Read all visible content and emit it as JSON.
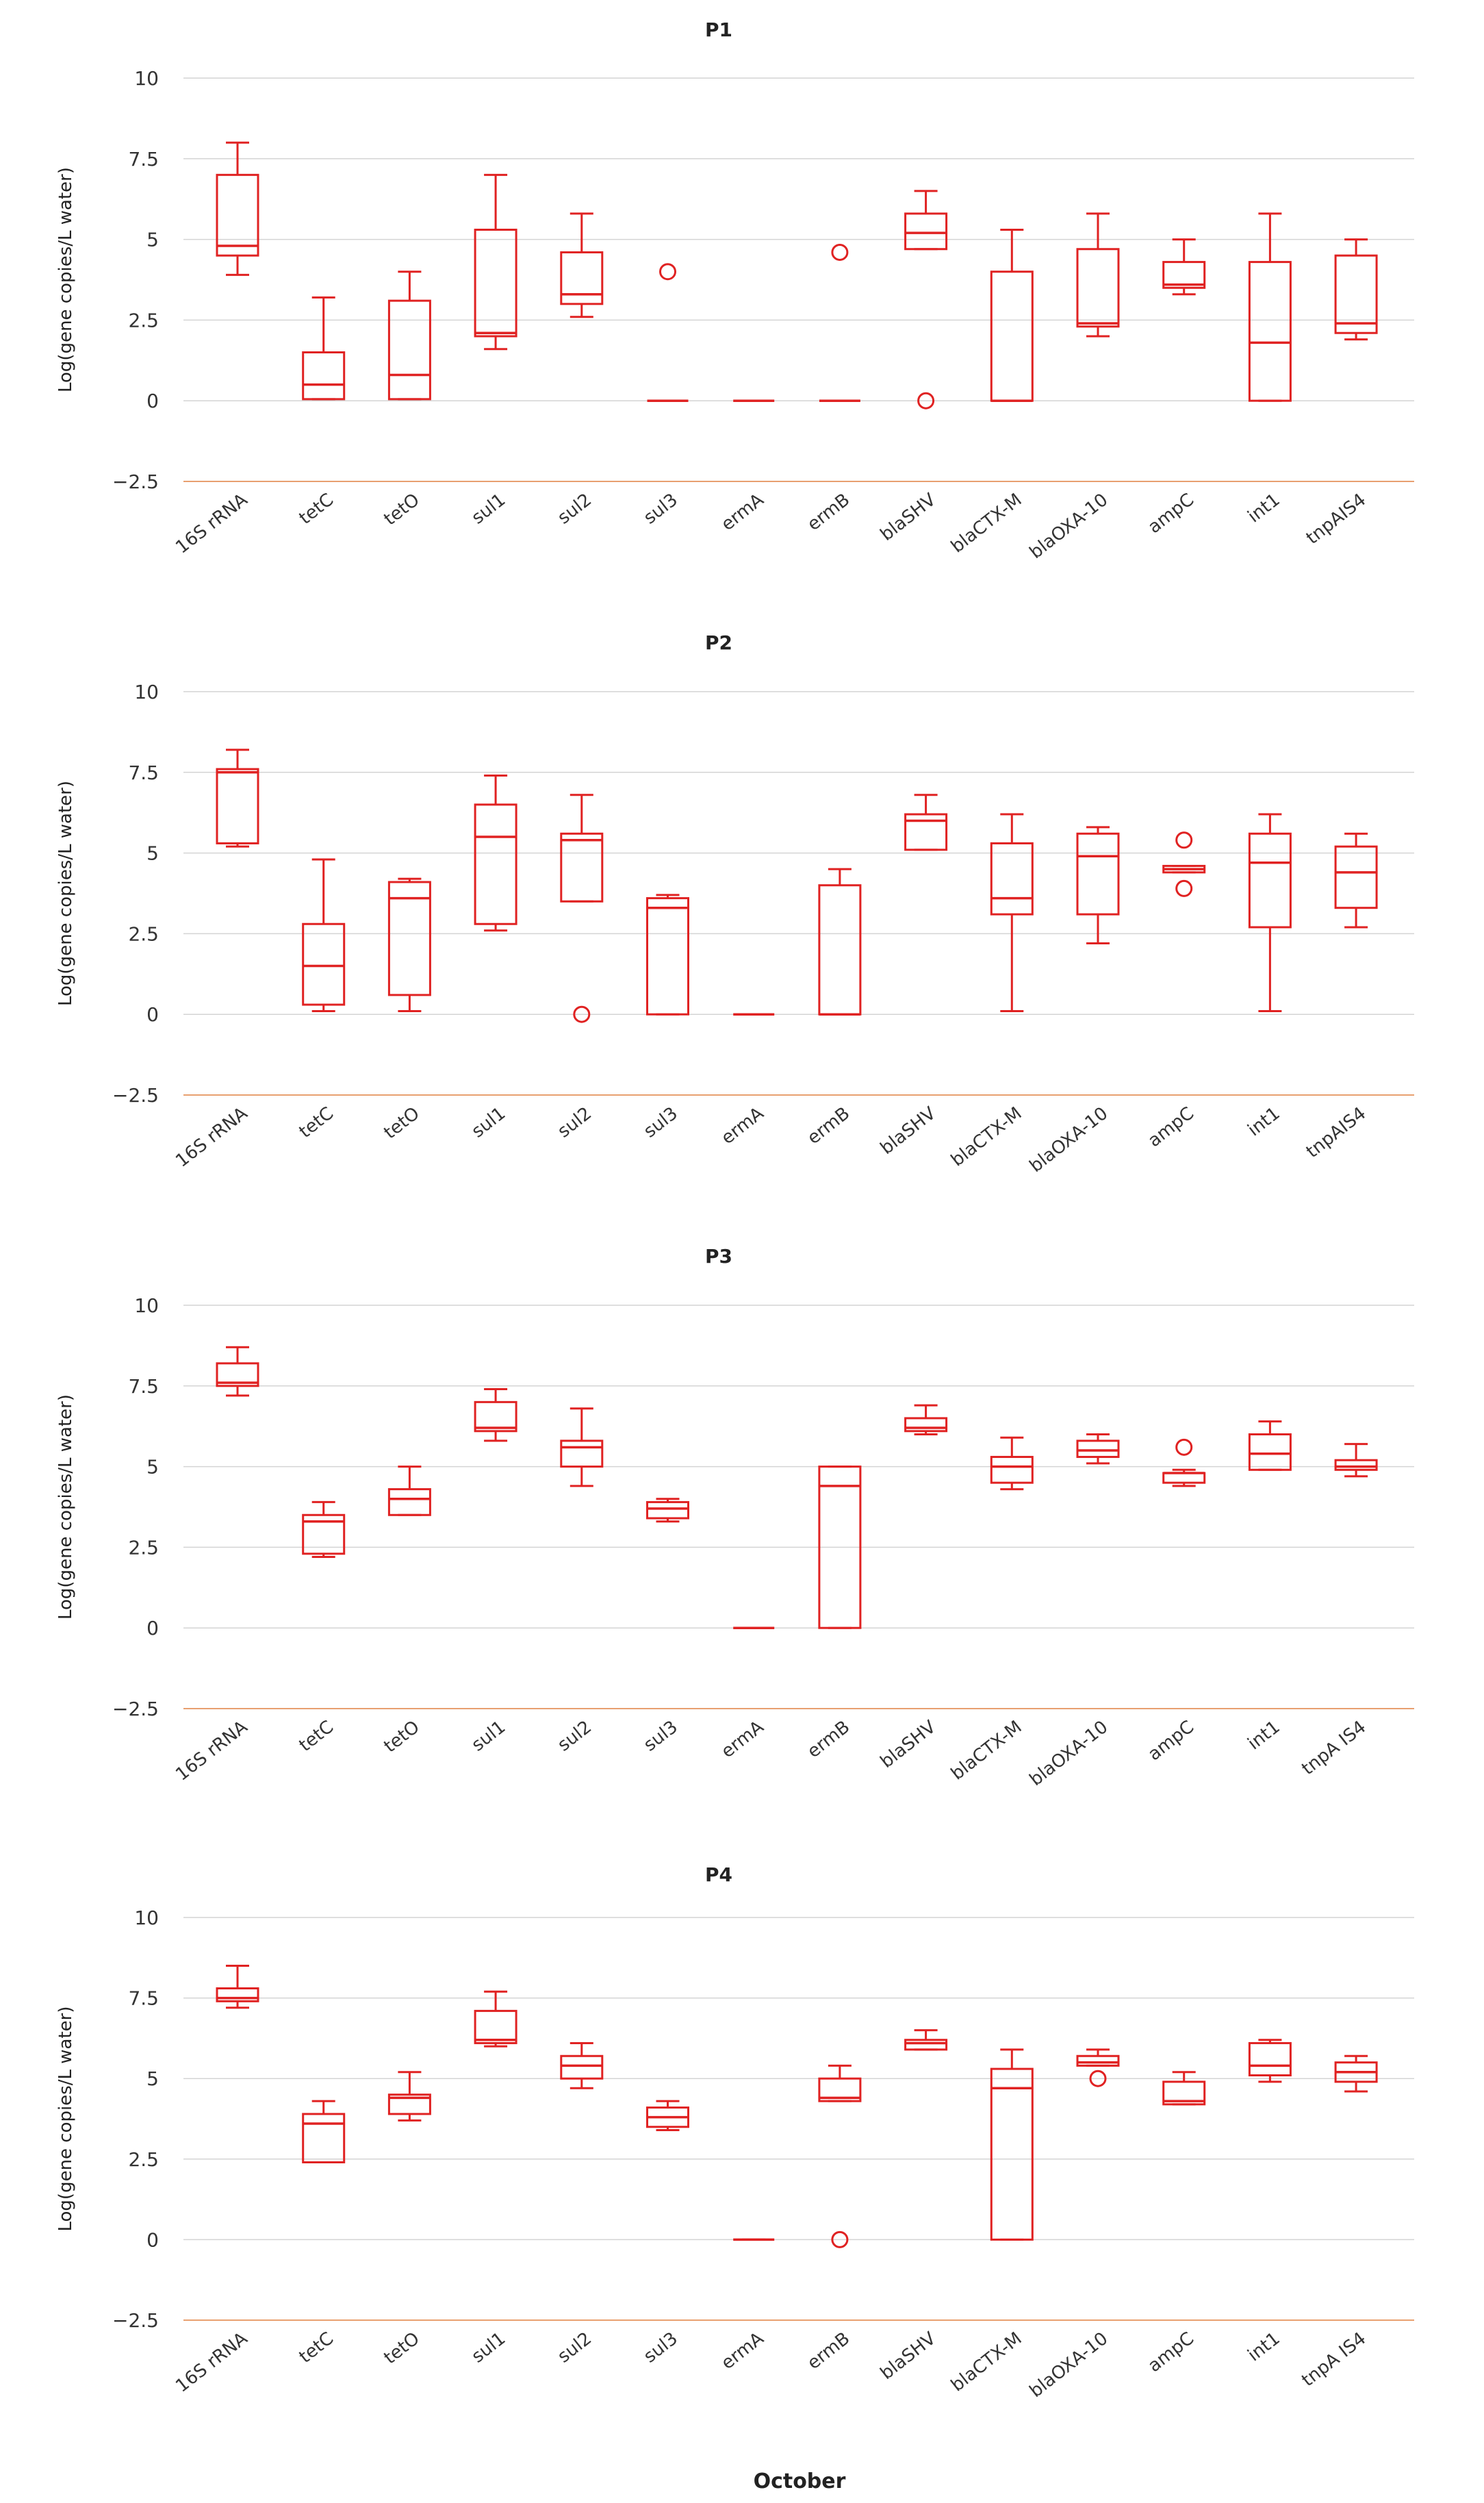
{
  "figure": {
    "xlabel": "October",
    "ylabel": "Log(gene copies/L water)",
    "line_color": "#e02222",
    "baseline_color": "#e8a070",
    "grid_color": "#d4d4d4",
    "yticks": [
      -2.5,
      0,
      2.5,
      5,
      7.5,
      10
    ],
    "ytick_labels": [
      "−2.5",
      "0",
      "2.5",
      "5",
      "7.5",
      "10"
    ]
  },
  "chart_data": [
    {
      "type": "box",
      "title": "P1",
      "ylim": [
        -2.5,
        10
      ],
      "categories": [
        "16S rRNA",
        "tetC",
        "tetO",
        "sul1",
        "sul2",
        "sul3",
        "ermA",
        "ermB",
        "blaSHV",
        "blaCTX-M",
        "blaOXA-10",
        "ampC",
        "int1",
        "tnpAIS4"
      ],
      "boxes": [
        {
          "min": 3.9,
          "q1": 4.5,
          "median": 4.8,
          "q3": 7.0,
          "max": 8.0,
          "outliers": []
        },
        {
          "min": 0.05,
          "q1": 0.05,
          "median": 0.5,
          "q3": 1.5,
          "max": 3.2,
          "outliers": []
        },
        {
          "min": 0.05,
          "q1": 0.05,
          "median": 0.8,
          "q3": 3.1,
          "max": 4.0,
          "outliers": []
        },
        {
          "min": 1.6,
          "q1": 2.0,
          "median": 2.1,
          "q3": 5.3,
          "max": 7.0,
          "outliers": []
        },
        {
          "min": 2.6,
          "q1": 3.0,
          "median": 3.3,
          "q3": 4.6,
          "max": 5.8,
          "outliers": []
        },
        {
          "min": 0,
          "q1": 0,
          "median": 0,
          "q3": 0,
          "max": 0,
          "outliers": [
            4.0
          ]
        },
        {
          "min": 0,
          "q1": 0,
          "median": 0,
          "q3": 0,
          "max": 0,
          "outliers": []
        },
        {
          "min": 0,
          "q1": 0,
          "median": 0,
          "q3": 0,
          "max": 0,
          "outliers": [
            4.6
          ]
        },
        {
          "min": 4.7,
          "q1": 4.7,
          "median": 5.2,
          "q3": 5.8,
          "max": 6.5,
          "outliers": [
            0
          ]
        },
        {
          "min": 0,
          "q1": 0,
          "median": 0,
          "q3": 4.0,
          "max": 5.3,
          "outliers": []
        },
        {
          "min": 2.0,
          "q1": 2.3,
          "median": 2.4,
          "q3": 4.7,
          "max": 5.8,
          "outliers": []
        },
        {
          "min": 3.3,
          "q1": 3.5,
          "median": 3.6,
          "q3": 4.3,
          "max": 5.0,
          "outliers": []
        },
        {
          "min": 0,
          "q1": 0,
          "median": 1.8,
          "q3": 4.3,
          "max": 5.8,
          "outliers": []
        },
        {
          "min": 1.9,
          "q1": 2.1,
          "median": 2.4,
          "q3": 4.5,
          "max": 5.0,
          "outliers": []
        }
      ]
    },
    {
      "type": "box",
      "title": "P2",
      "ylim": [
        -2.5,
        10
      ],
      "categories": [
        "16S rRNA",
        "tetC",
        "tetO",
        "sul1",
        "sul2",
        "sul3",
        "ermA",
        "ermB",
        "blaSHV",
        "blaCTX-M",
        "blaOXA-10",
        "ampC",
        "int1",
        "tnpAIS4"
      ],
      "boxes": [
        {
          "min": 5.2,
          "q1": 5.3,
          "median": 7.5,
          "q3": 7.6,
          "max": 8.2,
          "outliers": []
        },
        {
          "min": 0.1,
          "q1": 0.3,
          "median": 1.5,
          "q3": 2.8,
          "max": 4.8,
          "outliers": []
        },
        {
          "min": 0.1,
          "q1": 0.6,
          "median": 3.6,
          "q3": 4.1,
          "max": 4.2,
          "outliers": []
        },
        {
          "min": 2.6,
          "q1": 2.8,
          "median": 5.5,
          "q3": 6.5,
          "max": 7.4,
          "outliers": []
        },
        {
          "min": 3.5,
          "q1": 3.5,
          "median": 5.4,
          "q3": 5.6,
          "max": 6.8,
          "outliers": [
            0
          ]
        },
        {
          "min": 0,
          "q1": 0,
          "median": 3.3,
          "q3": 3.6,
          "max": 3.7,
          "outliers": []
        },
        {
          "min": 0,
          "q1": 0,
          "median": 0,
          "q3": 0,
          "max": 0,
          "outliers": []
        },
        {
          "min": 0,
          "q1": 0,
          "median": 0,
          "q3": 4.0,
          "max": 4.5,
          "outliers": []
        },
        {
          "min": 5.1,
          "q1": 5.1,
          "median": 6.0,
          "q3": 6.2,
          "max": 6.8,
          "outliers": []
        },
        {
          "min": 0.1,
          "q1": 3.1,
          "median": 3.6,
          "q3": 5.3,
          "max": 6.2,
          "outliers": []
        },
        {
          "min": 2.2,
          "q1": 3.1,
          "median": 4.9,
          "q3": 5.6,
          "max": 5.8,
          "outliers": []
        },
        {
          "min": 4.4,
          "q1": 4.4,
          "median": 4.5,
          "q3": 4.6,
          "max": 4.6,
          "outliers": [
            5.4,
            3.9
          ]
        },
        {
          "min": 0.1,
          "q1": 2.7,
          "median": 4.7,
          "q3": 5.6,
          "max": 6.2,
          "outliers": []
        },
        {
          "min": 2.7,
          "q1": 3.3,
          "median": 4.4,
          "q3": 5.2,
          "max": 5.6,
          "outliers": []
        }
      ]
    },
    {
      "type": "box",
      "title": "P3",
      "ylim": [
        -2.5,
        10
      ],
      "categories": [
        "16S rRNA",
        "tetC",
        "tetO",
        "sul1",
        "sul2",
        "sul3",
        "ermA",
        "ermB",
        "blaSHV",
        "blaCTX-M",
        "blaOXA-10",
        "ampC",
        "int1",
        "tnpA IS4"
      ],
      "boxes": [
        {
          "min": 7.2,
          "q1": 7.5,
          "median": 7.6,
          "q3": 8.2,
          "max": 8.7,
          "outliers": []
        },
        {
          "min": 2.2,
          "q1": 2.3,
          "median": 3.3,
          "q3": 3.5,
          "max": 3.9,
          "outliers": []
        },
        {
          "min": 3.5,
          "q1": 3.5,
          "median": 4.0,
          "q3": 4.3,
          "max": 5.0,
          "outliers": []
        },
        {
          "min": 5.8,
          "q1": 6.1,
          "median": 6.2,
          "q3": 7.0,
          "max": 7.4,
          "outliers": []
        },
        {
          "min": 4.4,
          "q1": 5.0,
          "median": 5.6,
          "q3": 5.8,
          "max": 6.8,
          "outliers": []
        },
        {
          "min": 3.3,
          "q1": 3.4,
          "median": 3.7,
          "q3": 3.9,
          "max": 4.0,
          "outliers": []
        },
        {
          "min": 0,
          "q1": 0,
          "median": 0,
          "q3": 0,
          "max": 0,
          "outliers": []
        },
        {
          "min": 0,
          "q1": 0,
          "median": 4.4,
          "q3": 5.0,
          "max": 5.0,
          "outliers": []
        },
        {
          "min": 6.0,
          "q1": 6.1,
          "median": 6.2,
          "q3": 6.5,
          "max": 6.9,
          "outliers": []
        },
        {
          "min": 4.3,
          "q1": 4.5,
          "median": 5.0,
          "q3": 5.3,
          "max": 5.9,
          "outliers": []
        },
        {
          "min": 5.1,
          "q1": 5.3,
          "median": 5.5,
          "q3": 5.8,
          "max": 6.0,
          "outliers": []
        },
        {
          "min": 4.4,
          "q1": 4.5,
          "median": 4.8,
          "q3": 4.8,
          "max": 4.9,
          "outliers": [
            5.6
          ]
        },
        {
          "min": 4.9,
          "q1": 4.9,
          "median": 5.4,
          "q3": 6.0,
          "max": 6.4,
          "outliers": []
        },
        {
          "min": 4.7,
          "q1": 4.9,
          "median": 5.0,
          "q3": 5.2,
          "max": 5.7,
          "outliers": []
        }
      ]
    },
    {
      "type": "box",
      "title": "P4",
      "ylim": [
        -2.5,
        10
      ],
      "categories": [
        "16S rRNA",
        "tetC",
        "tetO",
        "sul1",
        "sul2",
        "sul3",
        "ermA",
        "ermB",
        "blaSHV",
        "blaCTX-M",
        "blaOXA-10",
        "ampC",
        "int1",
        "tnpA IS4"
      ],
      "boxes": [
        {
          "min": 7.2,
          "q1": 7.4,
          "median": 7.5,
          "q3": 7.8,
          "max": 8.5,
          "outliers": []
        },
        {
          "min": 2.4,
          "q1": 2.4,
          "median": 3.6,
          "q3": 3.9,
          "max": 4.3,
          "outliers": []
        },
        {
          "min": 3.7,
          "q1": 3.9,
          "median": 4.4,
          "q3": 4.5,
          "max": 5.2,
          "outliers": []
        },
        {
          "min": 6.0,
          "q1": 6.1,
          "median": 6.2,
          "q3": 7.1,
          "max": 7.7,
          "outliers": []
        },
        {
          "min": 4.7,
          "q1": 5.0,
          "median": 5.4,
          "q3": 5.7,
          "max": 6.1,
          "outliers": []
        },
        {
          "min": 3.4,
          "q1": 3.5,
          "median": 3.8,
          "q3": 4.1,
          "max": 4.3,
          "outliers": []
        },
        {
          "min": 0,
          "q1": 0,
          "median": 0,
          "q3": 0,
          "max": 0,
          "outliers": []
        },
        {
          "min": 4.3,
          "q1": 4.3,
          "median": 4.4,
          "q3": 5.0,
          "max": 5.4,
          "outliers": [
            0
          ]
        },
        {
          "min": 5.9,
          "q1": 5.9,
          "median": 6.1,
          "q3": 6.2,
          "max": 6.5,
          "outliers": []
        },
        {
          "min": 0,
          "q1": 0,
          "median": 4.7,
          "q3": 5.3,
          "max": 5.9,
          "outliers": []
        },
        {
          "min": 5.4,
          "q1": 5.4,
          "median": 5.5,
          "q3": 5.7,
          "max": 5.9,
          "outliers": [
            5.0
          ]
        },
        {
          "min": 4.2,
          "q1": 4.2,
          "median": 4.3,
          "q3": 4.9,
          "max": 5.2,
          "outliers": []
        },
        {
          "min": 4.9,
          "q1": 5.1,
          "median": 5.4,
          "q3": 6.1,
          "max": 6.2,
          "outliers": []
        },
        {
          "min": 4.6,
          "q1": 4.9,
          "median": 5.2,
          "q3": 5.5,
          "max": 5.7,
          "outliers": []
        }
      ]
    }
  ]
}
